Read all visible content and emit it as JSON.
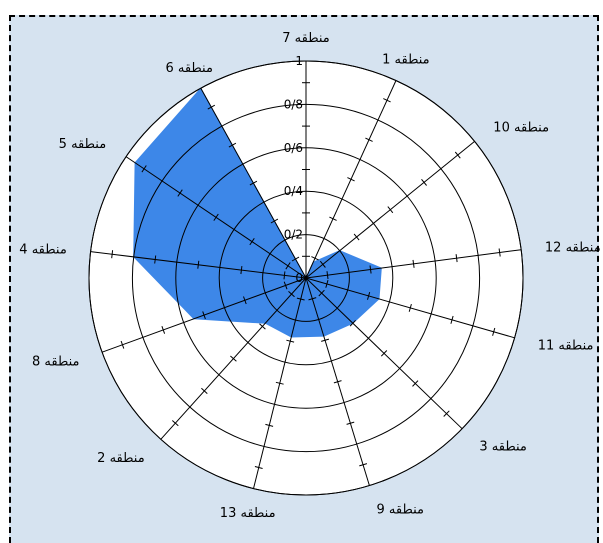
{
  "chart_data": {
    "type": "polar-area",
    "categories": [
      "منطقه 7",
      "منطقه 1",
      "منطقه 10",
      "منطقه 12",
      "منطقه 11",
      "منطقه 3",
      "منطقه 9",
      "منطقه 13",
      "منطقه 2",
      "منطقه 8",
      "منطقه 4",
      "منطقه 5",
      "منطقه 6"
    ],
    "values": [
      0.0,
      0.08,
      0.2,
      0.35,
      0.35,
      0.3,
      0.28,
      0.28,
      0.28,
      0.55,
      0.8,
      0.95,
      1.0
    ],
    "rlim": [
      0,
      1
    ],
    "r_ticks": [
      "0",
      "0/2",
      "0/4",
      "0/6",
      "0/8",
      "1"
    ],
    "colors": {
      "fill": "#3d87e8",
      "background": "#d6e3f0",
      "plot": "#ffffff",
      "grid": "#000000"
    }
  }
}
